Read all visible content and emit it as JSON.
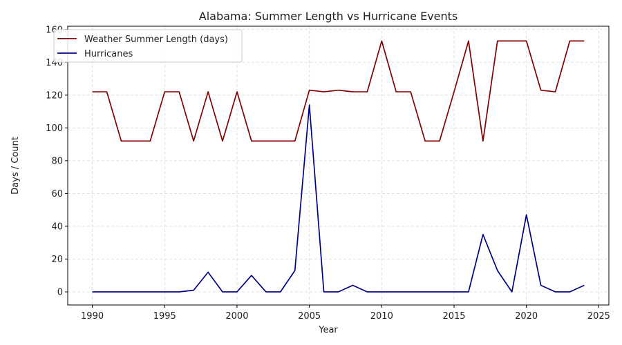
{
  "chart_data": {
    "type": "line",
    "title": "Alabama: Summer Length vs Hurricane Events",
    "xlabel": "Year",
    "ylabel": "Days / Count",
    "xlim": [
      1988.3,
      2025.7
    ],
    "ylim": [
      -8,
      162
    ],
    "xticks": [
      1990,
      1995,
      2000,
      2005,
      2010,
      2015,
      2020,
      2025
    ],
    "yticks": [
      0,
      20,
      40,
      60,
      80,
      100,
      120,
      140,
      160
    ],
    "grid": true,
    "legend_position": "top-left",
    "x": [
      1990,
      1991,
      1992,
      1993,
      1994,
      1995,
      1996,
      1997,
      1998,
      1999,
      2000,
      2001,
      2002,
      2003,
      2004,
      2005,
      2006,
      2007,
      2008,
      2009,
      2010,
      2011,
      2012,
      2013,
      2014,
      2015,
      2016,
      2017,
      2018,
      2019,
      2020,
      2021,
      2022,
      2023,
      2024
    ],
    "series": [
      {
        "name": "Weather Summer Length (days)",
        "color": "#800000",
        "values": [
          122,
          122,
          92,
          92,
          92,
          122,
          122,
          92,
          122,
          92,
          122,
          92,
          92,
          92,
          92,
          123,
          122,
          123,
          122,
          122,
          153,
          122,
          122,
          92,
          92,
          122,
          153,
          92,
          153,
          153,
          153,
          123,
          122,
          153,
          153
        ]
      },
      {
        "name": "Hurricanes",
        "color": "#000080",
        "values": [
          0,
          0,
          0,
          0,
          0,
          0,
          0,
          1,
          12,
          0,
          0,
          10,
          0,
          0,
          13,
          114,
          0,
          0,
          4,
          0,
          0,
          0,
          0,
          0,
          0,
          0,
          0,
          35,
          13,
          0,
          47,
          4,
          0,
          0,
          4
        ]
      }
    ]
  }
}
